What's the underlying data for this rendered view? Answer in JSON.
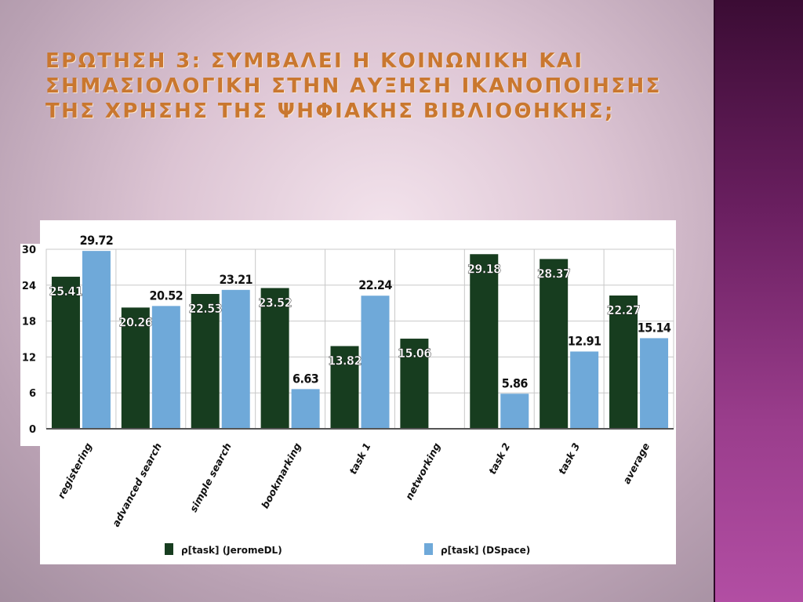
{
  "slide": {
    "title": "Ερωτηση 3: Συμβαλει η κοινωνικη και σημασιολογικη στην αυξηση ικανοποιησης της χρησης  της ψηφιακης βιβλιοθηκης;"
  },
  "colors": {
    "series1": "#173d1f",
    "series2": "#6fa9d9",
    "title": "#c9772f",
    "grid": "#c8c8c8"
  },
  "chart_data": {
    "type": "bar",
    "categories": [
      "registering",
      "advanced search",
      "simple search",
      "bookmarking",
      "task 1",
      "networking",
      "task 2",
      "task 3",
      "average"
    ],
    "series": [
      {
        "name": "ρ[task] (JeromeDL)",
        "values": [
          25.41,
          20.26,
          22.53,
          23.52,
          13.82,
          15.06,
          29.18,
          28.37,
          22.27
        ],
        "labels": [
          "25.41",
          "20.26",
          "22.53",
          "23.52",
          "13.82",
          "15.06",
          "29.18",
          "28.37",
          "22.27"
        ]
      },
      {
        "name": "ρ[task] (DSpace)",
        "values": [
          29.72,
          20.52,
          23.21,
          6.63,
          22.24,
          null,
          5.86,
          12.91,
          15.14
        ],
        "labels": [
          "29.72",
          "20.52",
          "23.21",
          "6.63",
          "22.24",
          "",
          "5.86",
          "12.91",
          "15.14"
        ]
      }
    ],
    "yticks": [
      "0",
      "6",
      "12",
      "18",
      "24",
      "30"
    ],
    "ylim": [
      0,
      30
    ],
    "grid": true,
    "legend": "bottom"
  }
}
